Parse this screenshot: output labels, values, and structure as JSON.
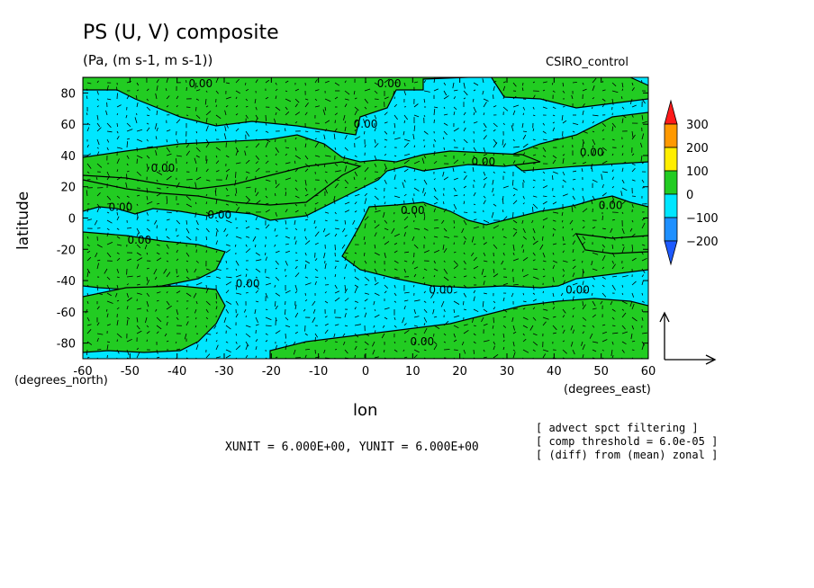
{
  "chart_data": {
    "type": "heatmap",
    "title": "PS (U, V) composite",
    "subtitle": "(Pa, (m s-1, m s-1))",
    "dataset_label": "CSIRO_control",
    "xlabel": "lon",
    "ylabel": "latitude",
    "x_units": "(degrees_east)",
    "y_units": "(degrees_north)",
    "xlim": [
      -60,
      60
    ],
    "ylim": [
      -90,
      90
    ],
    "x_ticks": [
      "-60",
      "-50",
      "-40",
      "-30",
      "-20",
      "-10",
      "0",
      "10",
      "20",
      "30",
      "40",
      "50",
      "60"
    ],
    "y_ticks": [
      "80",
      "60",
      "40",
      "20",
      "0",
      "-20",
      "-40",
      "-60",
      "-80"
    ],
    "contour_labels": [
      "0.00",
      "0.00",
      "0.00",
      "0.00",
      "0.00",
      "0.00",
      "0.00",
      "0.00",
      "0.00",
      "0.00",
      "0.00",
      "0.00",
      "0.00",
      "0.00",
      "0.00"
    ],
    "colorbar": {
      "labels": [
        "300",
        "200",
        "100",
        "0",
        "−100",
        "−200"
      ],
      "colors": [
        "#ff9900",
        "#ffee00",
        "#22cc22",
        "#00e6ff",
        "#1e90ff"
      ],
      "extend_top_color": "#ff1a1a",
      "extend_bottom_color": "#1e5aff"
    },
    "fill_colors": {
      "positive": "#22cc22",
      "negative": "#00e6ff"
    },
    "vector_field": "wind (U, V) arrows",
    "unit_note": "XUNIT = 6.000E+00, YUNIT = 6.000E+00",
    "notes": [
      "[ advect spct filtering ]",
      "[ comp threshold = 6.0e-05 ]",
      "[ (diff) from (mean) zonal ]"
    ]
  }
}
